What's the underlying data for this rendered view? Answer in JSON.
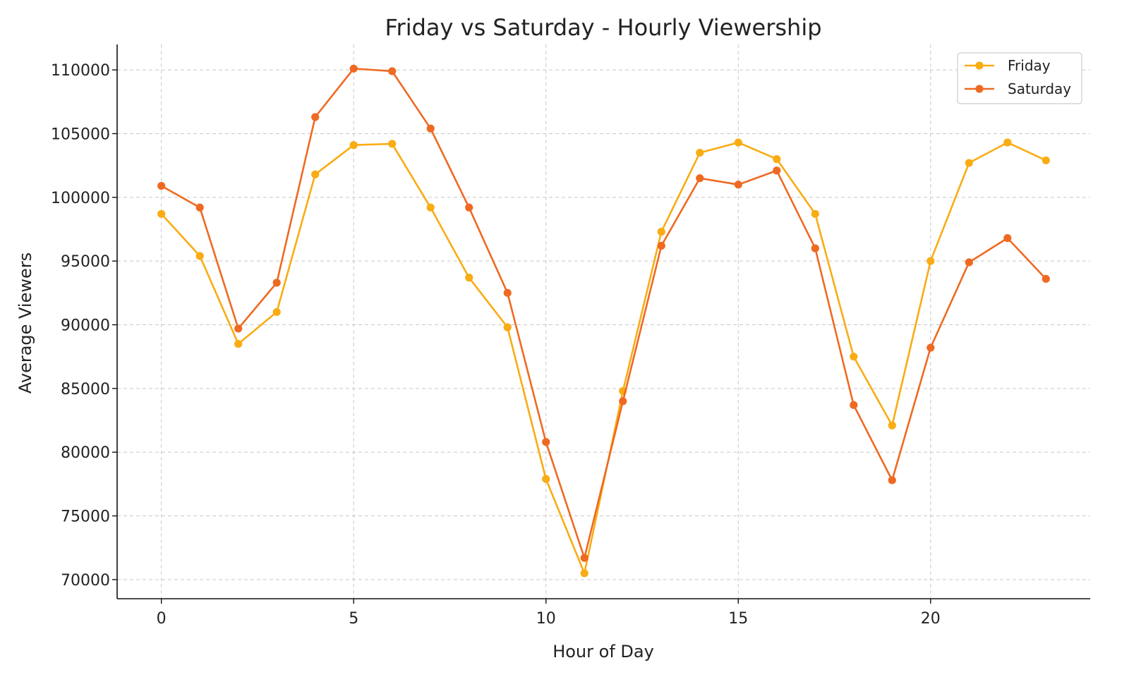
{
  "chart_data": {
    "type": "line",
    "title": "Friday vs Saturday - Hourly Viewership",
    "xlabel": "Hour of Day",
    "ylabel": "Average Viewers",
    "x": [
      0,
      1,
      2,
      3,
      4,
      5,
      6,
      7,
      8,
      9,
      10,
      11,
      12,
      13,
      14,
      15,
      16,
      17,
      18,
      19,
      20,
      21,
      22,
      23
    ],
    "xlim": [
      -1.15,
      24.15
    ],
    "ylim": [
      68500,
      112000
    ],
    "xticks": [
      "0",
      "5",
      "10",
      "15",
      "20"
    ],
    "yticks": [
      "70000",
      "75000",
      "80000",
      "85000",
      "90000",
      "95000",
      "100000",
      "105000",
      "110000"
    ],
    "grid": true,
    "legend_position": "top-right",
    "series": [
      {
        "name": "Friday",
        "color": "#F9AC13",
        "values": [
          98700,
          95400,
          88500,
          91000,
          101800,
          104100,
          104200,
          99200,
          93700,
          89800,
          77900,
          70500,
          84800,
          97300,
          103500,
          104300,
          103000,
          98700,
          87500,
          82100,
          95000,
          102700,
          104300,
          102900
        ]
      },
      {
        "name": "Saturday",
        "color": "#EE6A22",
        "values": [
          100900,
          99200,
          89700,
          93300,
          106300,
          110100,
          109900,
          105400,
          99200,
          92500,
          80800,
          71700,
          84000,
          96200,
          101500,
          101000,
          102100,
          96000,
          83700,
          77800,
          88200,
          94900,
          96800,
          93600
        ]
      }
    ]
  }
}
